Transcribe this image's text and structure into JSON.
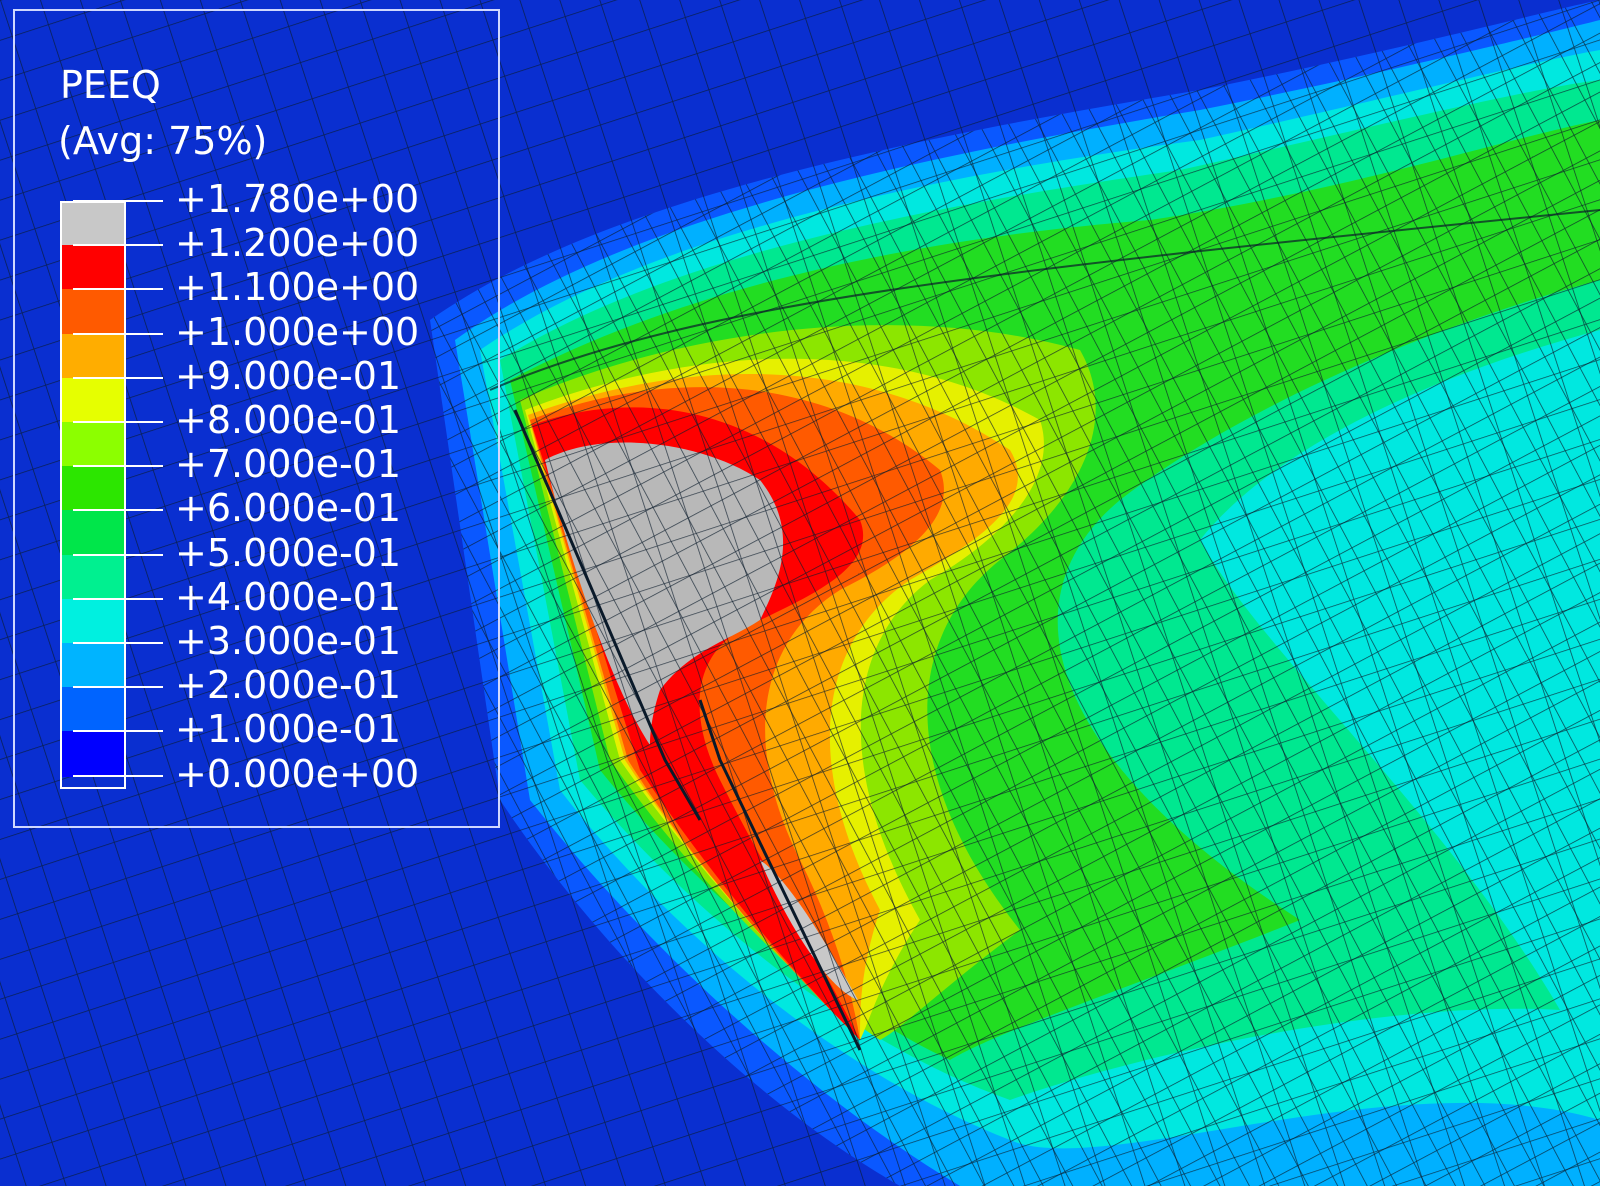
{
  "legend": {
    "title": "PEEQ",
    "subtitle": "(Avg: 75%)",
    "ticks": [
      "+1.780e+00",
      "+1.200e+00",
      "+1.100e+00",
      "+1.000e+00",
      "+9.000e-01",
      "+8.000e-01",
      "+7.000e-01",
      "+6.000e-01",
      "+5.000e-01",
      "+4.000e-01",
      "+3.000e-01",
      "+2.000e-01",
      "+1.000e-01",
      "+0.000e+00"
    ],
    "band_colors": [
      "#c8c8c8",
      "#ff0000",
      "#ff5a00",
      "#ffad00",
      "#e6ff00",
      "#8cff00",
      "#2ce600",
      "#00e64a",
      "#00f090",
      "#00f0e0",
      "#00b4ff",
      "#0064ff",
      "#0000ff"
    ]
  },
  "contour_colors": {
    "background": "#0a2fd0",
    "deep_blue": "#0018e6",
    "blue": "#0a58ff",
    "light_blue": "#00b0ff",
    "cyan": "#00e8e0",
    "teal_green": "#00e890",
    "green": "#22dd22",
    "yellow_green": "#8ce600",
    "yellow": "#e6f000",
    "orange": "#ffaa00",
    "dark_orange": "#ff5a00",
    "red": "#ff0000",
    "grey": "#b8b8b8",
    "mesh_line": "#0a1a2a"
  }
}
